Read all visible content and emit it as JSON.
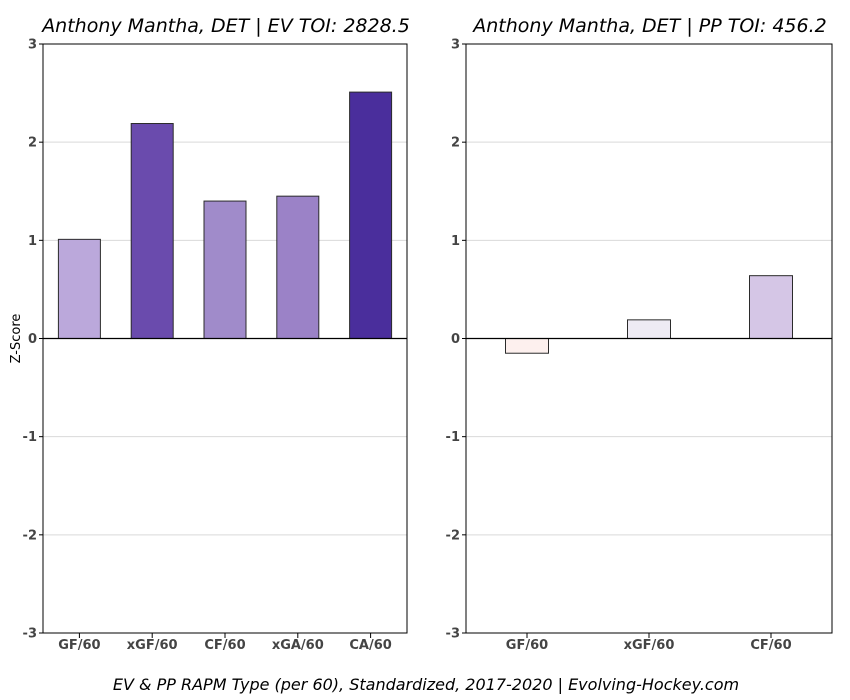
{
  "chart_data": [
    {
      "type": "bar",
      "title": "Anthony Mantha, DET  |  EV TOI: 2828.5",
      "ylabel": "Z-Score",
      "xlabel": "",
      "ylim": [
        -3,
        3
      ],
      "yticks": [
        "3",
        "2",
        "1",
        "0",
        "-1",
        "-2",
        "-3"
      ],
      "grid": true,
      "categories": [
        "GF/60",
        "xGF/60",
        "CF/60",
        "xGA/60",
        "CA/60"
      ],
      "values": [
        1.01,
        2.19,
        1.4,
        1.45,
        2.51
      ],
      "colors": [
        "#bba8db",
        "#6a4bad",
        "#a08bca",
        "#9b82c7",
        "#4a2e9c"
      ]
    },
    {
      "type": "bar",
      "title": "Anthony Mantha, DET  |  PP TOI: 456.2",
      "ylabel": "",
      "xlabel": "",
      "ylim": [
        -3,
        3
      ],
      "yticks": [
        "3",
        "2",
        "1",
        "0",
        "-1",
        "-2",
        "-3"
      ],
      "grid": true,
      "categories": [
        "GF/60",
        "xGF/60",
        "CF/60"
      ],
      "values": [
        -0.15,
        0.19,
        0.64
      ],
      "colors": [
        "#fdf0ee",
        "#eeebf4",
        "#d5c6e6"
      ]
    }
  ],
  "caption": "EV & PP RAPM Type (per 60), Standardized, 2017-2020    |    Evolving-Hockey.com"
}
